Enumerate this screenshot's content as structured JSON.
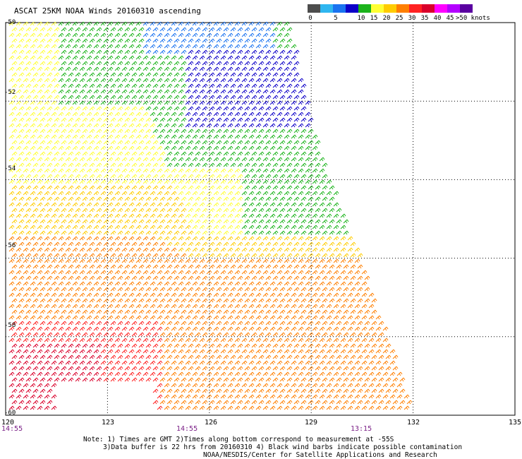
{
  "title": "ASCAT 25KM NOAA Winds 20160310 ascending",
  "legend": {
    "labels": [
      "0",
      "5",
      "10",
      "15",
      "20",
      "25",
      "30",
      "35",
      "40",
      "45",
      ">50 knots"
    ],
    "colors": [
      "#4d4d4d",
      "#2fb6f0",
      "#1a73f0",
      "#0d00c8",
      "#1cb31c",
      "#ffff33",
      "#ffcc00",
      "#ff7f00",
      "#ff2222",
      "#d9002a",
      "#ff00ff",
      "#b400ff",
      "#5a00a0"
    ],
    "label_values": [
      0,
      5,
      10,
      15,
      20,
      25,
      30,
      35,
      40,
      45,
      50
    ]
  },
  "latitudes": [
    "-50",
    "-52",
    "-54",
    "-56",
    "-58",
    "-60"
  ],
  "longitudes": [
    "120",
    "123",
    "126",
    "129",
    "132",
    "135"
  ],
  "times": [
    {
      "label": "14:55",
      "lon": 120
    },
    {
      "label": "14:55",
      "lon": 125
    },
    {
      "label": "13:15",
      "lon": 130
    }
  ],
  "notes": {
    "line1": "Note: 1) Times are GMT 2)Times along bottom correspond to measurement at -55S",
    "line2": "3)Data buffer is 22 hrs from 20160310 4) Black wind barbs indicate possible contamination",
    "line3": "NOAA/NESDIS/Center for Satellite Applications and Research"
  },
  "map": {
    "lat_range": [
      -60,
      -50
    ],
    "lon_range": [
      120,
      135
    ],
    "swath_east_edge": [
      [
        -50,
        128.3
      ],
      [
        -52,
        128.8
      ],
      [
        -54,
        129.5
      ],
      [
        -56,
        130.4
      ],
      [
        -58,
        131.2
      ],
      [
        -60,
        132.0
      ]
    ],
    "wind_regions": [
      {
        "speed_knots": 12,
        "color": "#1a73f0",
        "area": "north-central -50 to -51"
      },
      {
        "speed_knots": 17,
        "color": "#0d00c8",
        "area": "east -51.5 to -53.5"
      },
      {
        "speed_knots": 20,
        "color": "#1cb31c",
        "area": "central-east -50 to -56"
      },
      {
        "speed_knots": 25,
        "color": "#ffff33",
        "area": "west and central -50 to -57"
      },
      {
        "speed_knots": 30,
        "color": "#ffcc00",
        "area": "southwest -54 to -58"
      },
      {
        "speed_knots": 35,
        "color": "#ff7f00",
        "area": "south -56 to -60"
      },
      {
        "speed_knots": 40,
        "color": "#ff2222",
        "area": "southwest -58 to -60"
      },
      {
        "speed_knots": 45,
        "color": "#d9002a",
        "area": "far southwest -58.5 to -60"
      }
    ],
    "wind_direction": "from west-northwest",
    "data_gap_area": "white gap near 121.5E to 124E, -59.2 to -60"
  }
}
